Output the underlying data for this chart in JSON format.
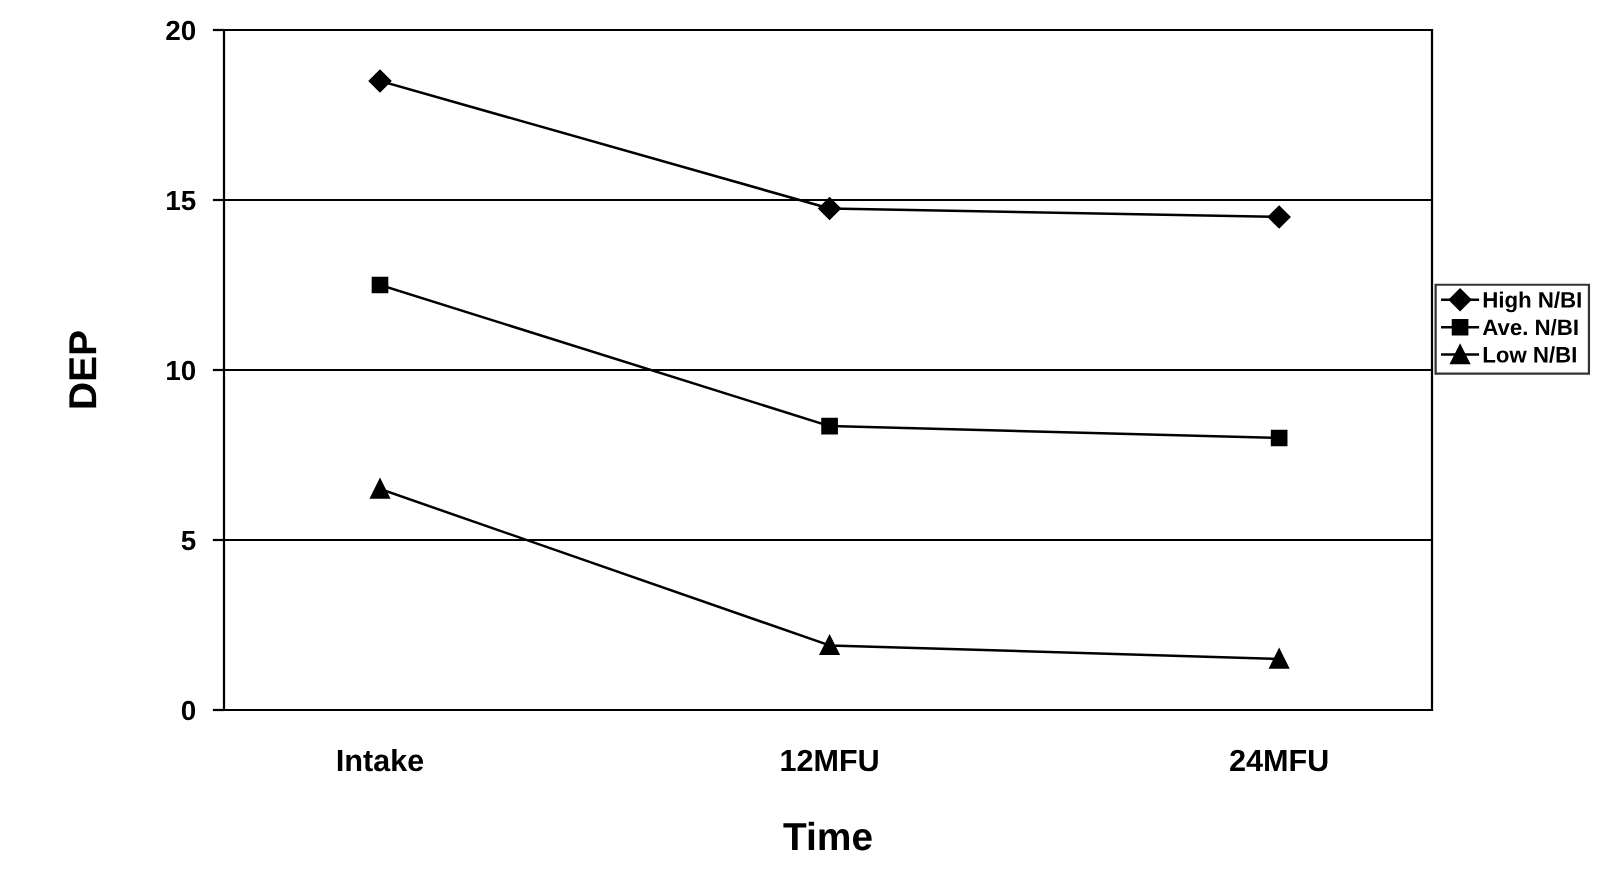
{
  "chart_data": {
    "type": "line",
    "xlabel": "Time",
    "ylabel": "DEP",
    "categories": [
      "Intake",
      "12MFU",
      "24MFU"
    ],
    "series": [
      {
        "name": "High N/BI",
        "color": "#000000",
        "marker": "diamond",
        "values": [
          18.5,
          14.75,
          14.5
        ]
      },
      {
        "name": "Ave. N/BI",
        "color": "#000000",
        "marker": "square",
        "values": [
          12.5,
          8.35,
          8.0
        ]
      },
      {
        "name": "Low N/BI",
        "color": "#000000",
        "marker": "triangle",
        "values": [
          6.5,
          1.9,
          1.5
        ]
      }
    ],
    "ylim": [
      0,
      20
    ],
    "yticks": [
      0,
      5,
      10,
      15,
      20
    ],
    "grid": "y",
    "legend": "right",
    "line_style": "solid"
  }
}
